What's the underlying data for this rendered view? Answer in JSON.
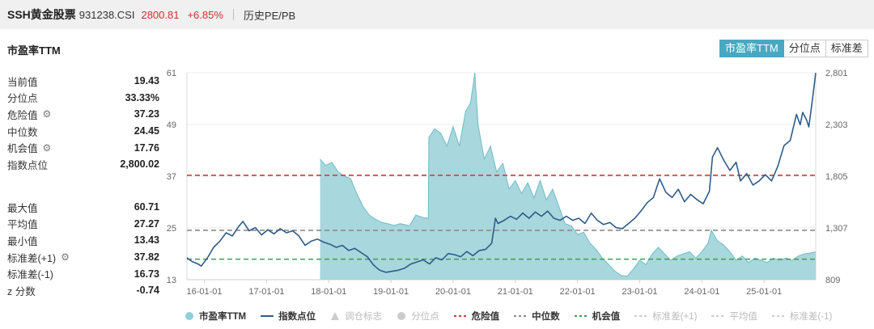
{
  "header": {
    "name": "SSH黄金股票",
    "code": "931238.CSI",
    "price": "2800.81",
    "change": "+6.85%",
    "tab": "历史PE/PB"
  },
  "subtitle": "市盈率TTM",
  "buttons": [
    {
      "label": "市盈率TTM",
      "active": true
    },
    {
      "label": "分位点",
      "active": false
    },
    {
      "label": "标准差",
      "active": false
    }
  ],
  "stats_top": [
    {
      "label": "当前值",
      "value": "19.43",
      "icon": ""
    },
    {
      "label": "分位点",
      "value": "33.33%",
      "icon": ""
    },
    {
      "label": "危险值",
      "value": "37.23",
      "icon": "gear-icon"
    },
    {
      "label": "中位数",
      "value": "24.45",
      "icon": ""
    },
    {
      "label": "机会值",
      "value": "17.76",
      "icon": "gear-icon"
    },
    {
      "label": "指数点位",
      "value": "2,800.02",
      "icon": ""
    }
  ],
  "stats_bottom": [
    {
      "label": "最大值",
      "value": "60.71",
      "icon": ""
    },
    {
      "label": "平均值",
      "value": "27.27",
      "icon": ""
    },
    {
      "label": "最小值",
      "value": "13.43",
      "icon": ""
    },
    {
      "label": "标准差(+1)",
      "value": "37.82",
      "icon": "gear-icon"
    },
    {
      "label": "标准差(-1)",
      "value": "16.73",
      "icon": ""
    },
    {
      "label": "z 分数",
      "value": "-0.74",
      "icon": ""
    }
  ],
  "chart_data": {
    "type": "area",
    "x_tick_labels": [
      "16-01-01",
      "17-01-01",
      "18-01-01",
      "19-01-01",
      "20-01-01",
      "21-01-01",
      "22-01-01",
      "23-01-01",
      "24-01-01",
      "25-01-01"
    ],
    "x_range": [
      2015.72,
      2025.83
    ],
    "y_left": {
      "ticks": [
        "13",
        "25",
        "37",
        "49",
        "61"
      ],
      "range": [
        13,
        61
      ]
    },
    "y_right": {
      "ticks": [
        "809",
        "1,307",
        "1,805",
        "2,303",
        "2,801"
      ],
      "range": [
        809,
        2801
      ]
    },
    "reference_lines": [
      {
        "label": "危险值",
        "value": 37.23,
        "color": "#d63a3a"
      },
      {
        "label": "中位数",
        "value": 24.45,
        "color": "#8a8a8a"
      },
      {
        "label": "机会值",
        "value": 17.76,
        "color": "#3aa052"
      }
    ],
    "colors": {
      "pe_fill": "#9fd3d9",
      "pe_stroke": "#6fbcc6",
      "index_line": "#2e5c8a"
    },
    "series": [
      {
        "name": "市盈率TTM",
        "axis": "left",
        "points": [
          [
            2017.85,
            null
          ],
          [
            2017.86,
            41.0
          ],
          [
            2017.95,
            39.5
          ],
          [
            2018.05,
            40.2
          ],
          [
            2018.15,
            38.0
          ],
          [
            2018.25,
            37.0
          ],
          [
            2018.35,
            36.5
          ],
          [
            2018.45,
            33.0
          ],
          [
            2018.55,
            30.0
          ],
          [
            2018.65,
            28.0
          ],
          [
            2018.75,
            27.0
          ],
          [
            2018.85,
            26.3
          ],
          [
            2018.95,
            26.0
          ],
          [
            2019.05,
            25.6
          ],
          [
            2019.15,
            26.0
          ],
          [
            2019.3,
            25.5
          ],
          [
            2019.4,
            28.0
          ],
          [
            2019.5,
            27.5
          ],
          [
            2019.6,
            27.2
          ],
          [
            2019.61,
            46.0
          ],
          [
            2019.7,
            48.0
          ],
          [
            2019.8,
            47.0
          ],
          [
            2019.9,
            44.0
          ],
          [
            2020.0,
            48.5
          ],
          [
            2020.1,
            44.0
          ],
          [
            2020.2,
            52.0
          ],
          [
            2020.28,
            54.0
          ],
          [
            2020.35,
            61.0
          ],
          [
            2020.4,
            49.0
          ],
          [
            2020.5,
            41.0
          ],
          [
            2020.6,
            44.0
          ],
          [
            2020.7,
            38.0
          ],
          [
            2020.8,
            40.0
          ],
          [
            2020.9,
            34.0
          ],
          [
            2021.0,
            36.0
          ],
          [
            2021.1,
            33.0
          ],
          [
            2021.2,
            35.5
          ],
          [
            2021.3,
            32.0
          ],
          [
            2021.4,
            36.0
          ],
          [
            2021.5,
            31.5
          ],
          [
            2021.6,
            34.0
          ],
          [
            2021.7,
            30.0
          ],
          [
            2021.8,
            26.0
          ],
          [
            2021.9,
            25.5
          ],
          [
            2022.0,
            23.5
          ],
          [
            2022.1,
            24.0
          ],
          [
            2022.2,
            21.5
          ],
          [
            2022.3,
            20.0
          ],
          [
            2022.4,
            18.0
          ],
          [
            2022.5,
            16.5
          ],
          [
            2022.6,
            15.0
          ],
          [
            2022.7,
            14.0
          ],
          [
            2022.8,
            13.8
          ],
          [
            2022.9,
            15.5
          ],
          [
            2023.0,
            17.5
          ],
          [
            2023.1,
            16.5
          ],
          [
            2023.2,
            19.0
          ],
          [
            2023.3,
            20.5
          ],
          [
            2023.4,
            19.0
          ],
          [
            2023.5,
            17.5
          ],
          [
            2023.6,
            18.5
          ],
          [
            2023.7,
            19.0
          ],
          [
            2023.8,
            19.5
          ],
          [
            2023.9,
            18.0
          ],
          [
            2024.0,
            19.5
          ],
          [
            2024.1,
            21.5
          ],
          [
            2024.15,
            24.5
          ],
          [
            2024.25,
            22.0
          ],
          [
            2024.35,
            21.0
          ],
          [
            2024.45,
            19.5
          ],
          [
            2024.55,
            17.5
          ],
          [
            2024.65,
            18.5
          ],
          [
            2024.75,
            17.0
          ],
          [
            2024.85,
            18.0
          ],
          [
            2024.95,
            17.5
          ],
          [
            2025.05,
            17.0
          ],
          [
            2025.15,
            18.0
          ],
          [
            2025.25,
            17.5
          ],
          [
            2025.35,
            18.0
          ],
          [
            2025.45,
            17.5
          ],
          [
            2025.55,
            18.5
          ],
          [
            2025.65,
            19.0
          ],
          [
            2025.75,
            19.2
          ],
          [
            2025.83,
            19.43
          ]
        ]
      },
      {
        "name": "指数点位",
        "axis": "right",
        "points": [
          [
            2015.72,
            1020
          ],
          [
            2015.8,
            985
          ],
          [
            2015.9,
            960
          ],
          [
            2015.95,
            940
          ],
          [
            2016.05,
            1020
          ],
          [
            2016.15,
            1120
          ],
          [
            2016.25,
            1180
          ],
          [
            2016.35,
            1260
          ],
          [
            2016.45,
            1230
          ],
          [
            2016.55,
            1320
          ],
          [
            2016.62,
            1370
          ],
          [
            2016.72,
            1280
          ],
          [
            2016.82,
            1310
          ],
          [
            2016.92,
            1240
          ],
          [
            2017.02,
            1290
          ],
          [
            2017.12,
            1250
          ],
          [
            2017.22,
            1300
          ],
          [
            2017.32,
            1260
          ],
          [
            2017.42,
            1280
          ],
          [
            2017.52,
            1230
          ],
          [
            2017.62,
            1140
          ],
          [
            2017.72,
            1180
          ],
          [
            2017.82,
            1200
          ],
          [
            2017.92,
            1170
          ],
          [
            2018.02,
            1150
          ],
          [
            2018.12,
            1120
          ],
          [
            2018.22,
            1140
          ],
          [
            2018.32,
            1090
          ],
          [
            2018.42,
            1110
          ],
          [
            2018.52,
            1070
          ],
          [
            2018.62,
            1030
          ],
          [
            2018.72,
            950
          ],
          [
            2018.82,
            900
          ],
          [
            2018.92,
            880
          ],
          [
            2019.02,
            890
          ],
          [
            2019.12,
            900
          ],
          [
            2019.22,
            920
          ],
          [
            2019.32,
            960
          ],
          [
            2019.42,
            980
          ],
          [
            2019.52,
            1000
          ],
          [
            2019.62,
            960
          ],
          [
            2019.72,
            1020
          ],
          [
            2019.82,
            1000
          ],
          [
            2019.92,
            1060
          ],
          [
            2020.02,
            1050
          ],
          [
            2020.12,
            1030
          ],
          [
            2020.22,
            1080
          ],
          [
            2020.32,
            1040
          ],
          [
            2020.42,
            1090
          ],
          [
            2020.52,
            1100
          ],
          [
            2020.62,
            1160
          ],
          [
            2020.68,
            1400
          ],
          [
            2020.72,
            1350
          ],
          [
            2020.82,
            1380
          ],
          [
            2020.92,
            1420
          ],
          [
            2021.02,
            1390
          ],
          [
            2021.12,
            1450
          ],
          [
            2021.22,
            1400
          ],
          [
            2021.32,
            1460
          ],
          [
            2021.42,
            1420
          ],
          [
            2021.52,
            1470
          ],
          [
            2021.62,
            1400
          ],
          [
            2021.72,
            1380
          ],
          [
            2021.82,
            1420
          ],
          [
            2021.92,
            1380
          ],
          [
            2022.02,
            1400
          ],
          [
            2022.12,
            1350
          ],
          [
            2022.22,
            1450
          ],
          [
            2022.32,
            1380
          ],
          [
            2022.42,
            1340
          ],
          [
            2022.52,
            1360
          ],
          [
            2022.62,
            1310
          ],
          [
            2022.72,
            1300
          ],
          [
            2022.82,
            1350
          ],
          [
            2022.92,
            1400
          ],
          [
            2023.02,
            1470
          ],
          [
            2023.12,
            1550
          ],
          [
            2023.22,
            1600
          ],
          [
            2023.32,
            1780
          ],
          [
            2023.42,
            1650
          ],
          [
            2023.52,
            1600
          ],
          [
            2023.62,
            1680
          ],
          [
            2023.72,
            1560
          ],
          [
            2023.82,
            1630
          ],
          [
            2023.92,
            1580
          ],
          [
            2024.02,
            1540
          ],
          [
            2024.12,
            1660
          ],
          [
            2024.17,
            1990
          ],
          [
            2024.25,
            2080
          ],
          [
            2024.35,
            1960
          ],
          [
            2024.45,
            1860
          ],
          [
            2024.55,
            1940
          ],
          [
            2024.62,
            1760
          ],
          [
            2024.72,
            1830
          ],
          [
            2024.82,
            1720
          ],
          [
            2024.92,
            1760
          ],
          [
            2025.02,
            1820
          ],
          [
            2025.12,
            1760
          ],
          [
            2025.22,
            1900
          ],
          [
            2025.32,
            2100
          ],
          [
            2025.42,
            2150
          ],
          [
            2025.52,
            2400
          ],
          [
            2025.58,
            2300
          ],
          [
            2025.62,
            2420
          ],
          [
            2025.68,
            2350
          ],
          [
            2025.72,
            2280
          ],
          [
            2025.78,
            2560
          ],
          [
            2025.83,
            2800
          ]
        ]
      }
    ],
    "legend": [
      {
        "label": "市盈率TTM",
        "symbol": "circle",
        "color": "#8fcfd8",
        "dim": false
      },
      {
        "label": "指数点位",
        "symbol": "line",
        "color": "#2e5c8a",
        "dim": false
      },
      {
        "label": "调仓标志",
        "symbol": "triangle",
        "color": "#cccccc",
        "dim": true
      },
      {
        "label": "分位点",
        "symbol": "circle",
        "color": "#cccccc",
        "dim": true
      },
      {
        "label": "危险值",
        "symbol": "dash",
        "color": "#d63a3a",
        "dim": false
      },
      {
        "label": "中位数",
        "symbol": "dash",
        "color": "#8a8a8a",
        "dim": false
      },
      {
        "label": "机会值",
        "symbol": "dash",
        "color": "#3aa052",
        "dim": false
      },
      {
        "label": "标准差(+1)",
        "symbol": "dash",
        "color": "#cccccc",
        "dim": true
      },
      {
        "label": "平均值",
        "symbol": "dash",
        "color": "#cccccc",
        "dim": true
      },
      {
        "label": "标准差(-1)",
        "symbol": "dash",
        "color": "#cccccc",
        "dim": true
      }
    ]
  }
}
